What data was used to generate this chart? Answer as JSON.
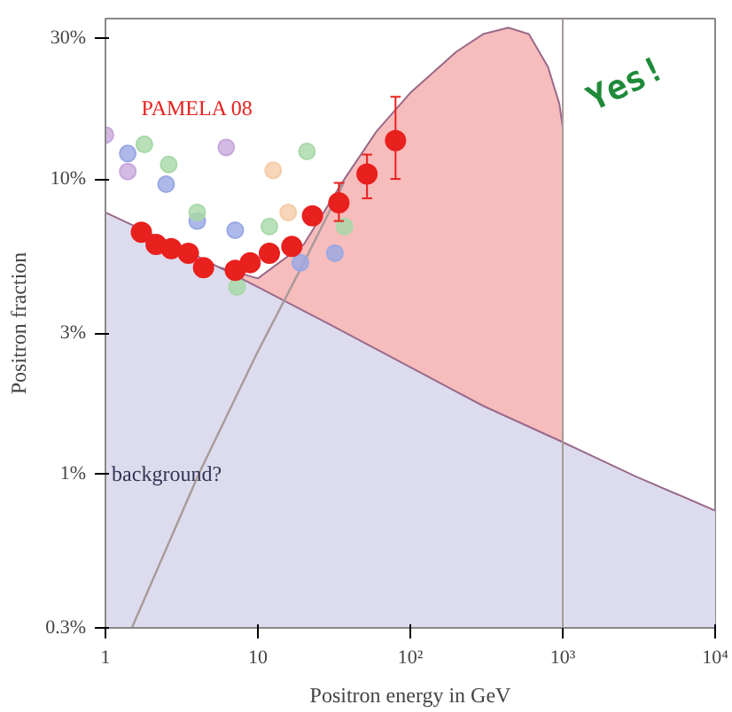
{
  "chart_data": {
    "type": "scatter",
    "xlabel": "Positron energy in GeV",
    "ylabel": "Positron fraction",
    "log": "xy",
    "grid": false,
    "xlim": [
      1,
      10000
    ],
    "ylim": [
      0.3,
      35
    ],
    "xticks": [
      1,
      10,
      {
        "value": 100,
        "label": "10²"
      },
      {
        "value": 1000,
        "label": "10³"
      },
      {
        "value": 10000,
        "label": "10⁴"
      }
    ],
    "yticks": [
      {
        "value": 0.3,
        "label": "0.3%"
      },
      {
        "value": 1,
        "label": "1%"
      },
      {
        "value": 3,
        "label": "3%"
      },
      {
        "value": 10,
        "label": "10%"
      },
      {
        "value": 30,
        "label": "30%"
      }
    ],
    "ref_lines": [
      {
        "axis": "x",
        "value": 1000,
        "label": null,
        "color": "#a89a9a"
      }
    ],
    "annotations": [
      {
        "text": "background?",
        "x": 1.1,
        "y": 1.0
      },
      "Yes!"
    ],
    "series": [
      {
        "type": "area",
        "color": "#f7bcbc",
        "x": [
          3,
          5,
          10,
          20,
          37,
          60,
          100,
          200,
          300,
          440,
          600,
          800,
          950,
          1000,
          1000
        ],
        "values": [
          5.9,
          5.1,
          4.6,
          6.0,
          10.0,
          14.5,
          19.6,
          27,
          31,
          32.6,
          31,
          24,
          18,
          15,
          1.28
        ]
      },
      {
        "type": "area",
        "color": "#dcdcee",
        "x": [
          1,
          3,
          10,
          30,
          100,
          300,
          1000,
          3000,
          10000
        ],
        "values": [
          7.7,
          5.9,
          4.3,
          3.2,
          2.3,
          1.7,
          1.28,
          0.98,
          0.75
        ]
      },
      {
        "type": "line",
        "color": "#a89a9a",
        "x": [
          1.49,
          4.1,
          10,
          20,
          37
        ],
        "values": [
          0.3,
          1.0,
          2.6,
          5.2,
          9.8
        ]
      },
      {
        "marker": "circle",
        "color": "#c8a8dc",
        "x": [
          1.0,
          1.4,
          6.2
        ],
        "values": [
          14.1,
          10.6,
          12.8
        ]
      },
      {
        "marker": "circle",
        "color": "#98a8e4",
        "x": [
          1.4,
          2.5,
          4.0,
          7.1,
          19,
          32
        ],
        "values": [
          12.2,
          9.6,
          7.2,
          6.7,
          5.2,
          5.6
        ]
      },
      {
        "marker": "circle",
        "color": "#a8d8a8",
        "x": [
          1.8,
          2.6,
          4.0,
          7.3,
          11.9,
          21,
          37
        ],
        "values": [
          13.1,
          11.2,
          7.7,
          4.3,
          6.9,
          12.4,
          6.9
        ]
      },
      {
        "marker": "circle",
        "color": "#f5cca8",
        "x": [
          12.6,
          15.8
        ],
        "values": [
          10.7,
          7.7
        ]
      },
      {
        "name": "PAMELA 08",
        "marker": "circle",
        "color": "#e8201e",
        "x": [
          1.72,
          2.15,
          2.7,
          3.5,
          4.4,
          7.1,
          8.9,
          11.9,
          16.7,
          22.8,
          34,
          52,
          80
        ],
        "values": [
          6.6,
          6.0,
          5.8,
          5.6,
          5.0,
          4.9,
          5.2,
          5.6,
          5.9,
          7.5,
          8.3,
          10.4,
          13.5
        ],
        "errors": [
          null,
          null,
          null,
          null,
          null,
          null,
          null,
          null,
          null,
          null,
          [
            7.2,
            9.7
          ],
          [
            8.6,
            12.1
          ],
          [
            10,
            19
          ]
        ]
      }
    ]
  }
}
